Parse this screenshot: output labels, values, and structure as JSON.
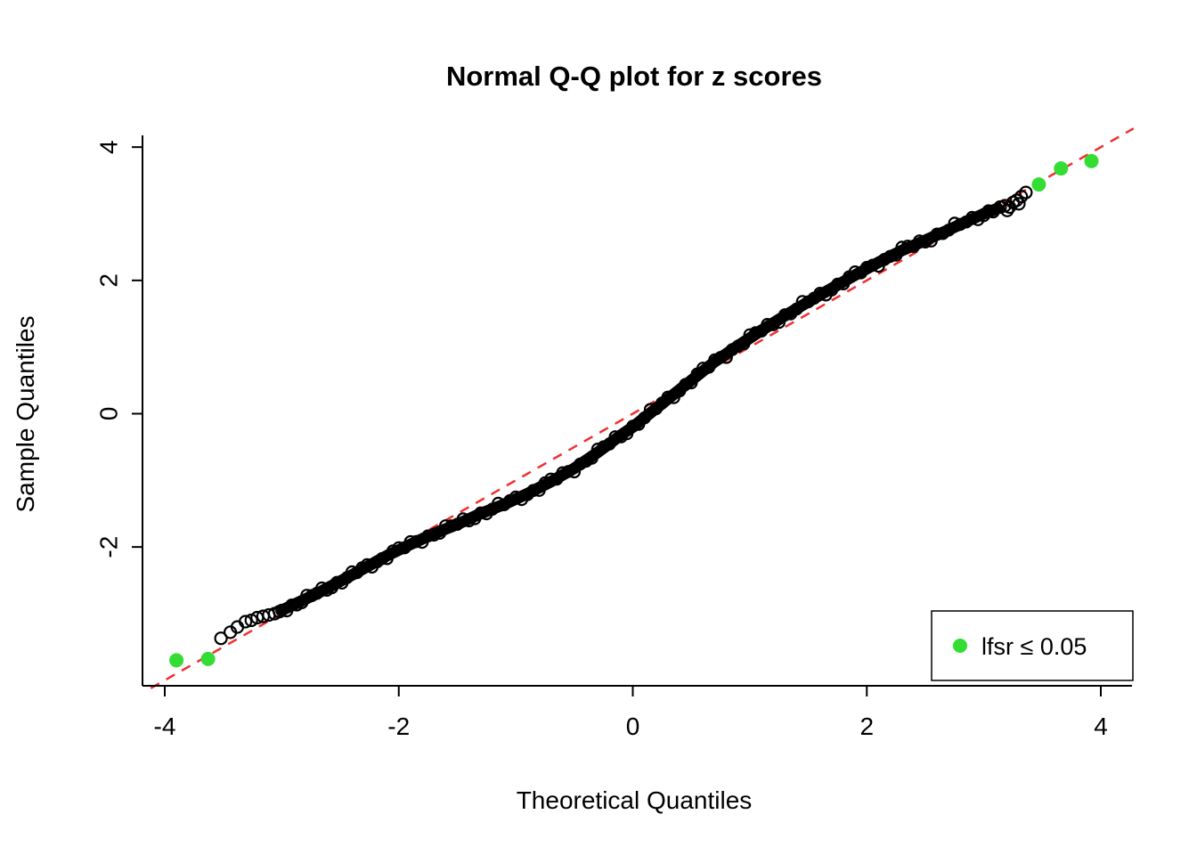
{
  "chart_data": {
    "type": "scatter",
    "title": "Normal Q-Q plot for z scores",
    "xlabel": "Theoretical Quantiles",
    "ylabel": "Sample Quantiles",
    "xlim": [
      -4.2,
      4.3
    ],
    "ylim": [
      -4.1,
      4.2
    ],
    "x_ticks": [
      -4,
      -2,
      0,
      2,
      4
    ],
    "y_ticks": [
      -2,
      0,
      2,
      4
    ],
    "grid": false,
    "legend": {
      "label": "lfsr  ≤ 0.05",
      "position": "bottomright",
      "marker": "filled-circle"
    },
    "reference_line": {
      "description": "identity line y = x",
      "slope": 1,
      "intercept": 0,
      "style": "dashed",
      "color": "#F03030"
    },
    "colors": {
      "points": "#000000",
      "significant": "#33DD33",
      "background": "#FFFFFF"
    },
    "series": [
      {
        "name": "qq-points",
        "marker": "open-circle",
        "color": "#000000",
        "style": "thousands of overlapping open circles forming a dense S-shaped band",
        "curve_anchors": [
          [
            -3.0,
            -2.95
          ],
          [
            -2.7,
            -2.7
          ],
          [
            -2.4,
            -2.42
          ],
          [
            -2.1,
            -2.13
          ],
          [
            -1.9,
            -1.96
          ],
          [
            -1.7,
            -1.8
          ],
          [
            -1.5,
            -1.66
          ],
          [
            -1.3,
            -1.5
          ],
          [
            -1.1,
            -1.36
          ],
          [
            -0.9,
            -1.2
          ],
          [
            -0.7,
            -1.02
          ],
          [
            -0.5,
            -0.82
          ],
          [
            -0.3,
            -0.58
          ],
          [
            -0.1,
            -0.32
          ],
          [
            0.0,
            -0.2
          ],
          [
            0.1,
            -0.06
          ],
          [
            0.3,
            0.22
          ],
          [
            0.5,
            0.5
          ],
          [
            0.7,
            0.78
          ],
          [
            0.9,
            1.02
          ],
          [
            1.1,
            1.25
          ],
          [
            1.3,
            1.47
          ],
          [
            1.5,
            1.68
          ],
          [
            1.7,
            1.88
          ],
          [
            1.9,
            2.08
          ],
          [
            2.1,
            2.27
          ],
          [
            2.3,
            2.45
          ],
          [
            2.5,
            2.6
          ],
          [
            2.7,
            2.76
          ],
          [
            2.9,
            2.92
          ],
          [
            3.0,
            3.0
          ],
          [
            3.12,
            3.08
          ]
        ],
        "left_tail_points": [
          [
            -3.52,
            -3.37
          ],
          [
            -3.44,
            -3.28
          ],
          [
            -3.38,
            -3.2
          ],
          [
            -3.31,
            -3.12
          ],
          [
            -3.26,
            -3.1
          ],
          [
            -3.21,
            -3.06
          ],
          [
            -3.16,
            -3.04
          ],
          [
            -3.11,
            -3.02
          ],
          [
            -3.06,
            -3.0
          ],
          [
            -3.02,
            -2.97
          ]
        ],
        "right_tail_points": [
          [
            3.14,
            3.1
          ],
          [
            3.18,
            3.12
          ],
          [
            3.2,
            3.05
          ],
          [
            3.22,
            3.1
          ],
          [
            3.25,
            3.17
          ],
          [
            3.28,
            3.2
          ],
          [
            3.3,
            3.15
          ],
          [
            3.32,
            3.26
          ],
          [
            3.36,
            3.32
          ]
        ]
      },
      {
        "name": "lfsr-significant",
        "marker": "filled-circle",
        "color": "#33DD33",
        "points": [
          [
            -3.9,
            -3.7
          ],
          [
            -3.63,
            -3.68
          ],
          [
            3.47,
            3.44
          ],
          [
            3.66,
            3.68
          ],
          [
            3.92,
            3.79
          ]
        ]
      }
    ]
  }
}
